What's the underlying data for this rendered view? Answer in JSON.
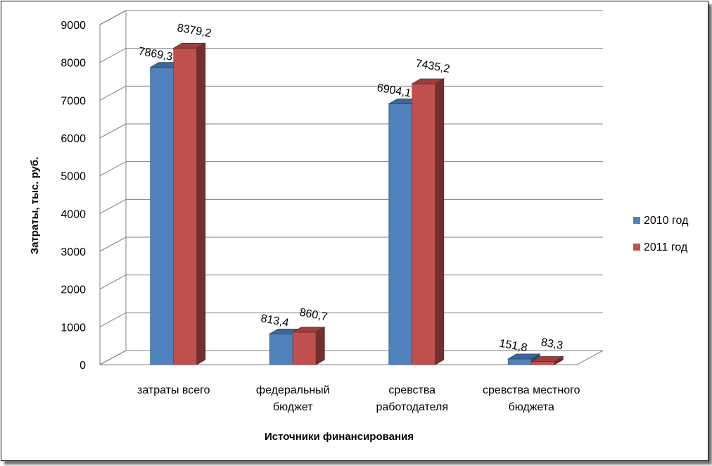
{
  "chart_data": {
    "type": "bar",
    "categories": [
      [
        "затраты всего"
      ],
      [
        "федеральный",
        "бюджет"
      ],
      [
        "сревства",
        "работодателя"
      ],
      [
        "сревства местного",
        "бюджета"
      ]
    ],
    "series": [
      {
        "name": "2010 год",
        "color": "#4F81BD",
        "values": [
          7869.3,
          813.4,
          6904.1,
          151.8
        ],
        "labels": [
          "7869,3",
          "813,4",
          "6904,1",
          "151,8"
        ]
      },
      {
        "name": "2011 год",
        "color": "#C0504D",
        "values": [
          8379.2,
          860.7,
          7435.2,
          83.3
        ],
        "labels": [
          "8379,2",
          "860,7",
          "7435,2",
          "83,3"
        ]
      }
    ],
    "ylim": [
      0,
      9000
    ],
    "yticks": [
      0,
      1000,
      2000,
      3000,
      4000,
      5000,
      6000,
      7000,
      8000,
      9000
    ],
    "xlabel": "Источники финансирования",
    "ylabel": "Затраты, тыс. руб.",
    "legend_position": "right",
    "grid": true,
    "style": "3d-clustered-column"
  }
}
